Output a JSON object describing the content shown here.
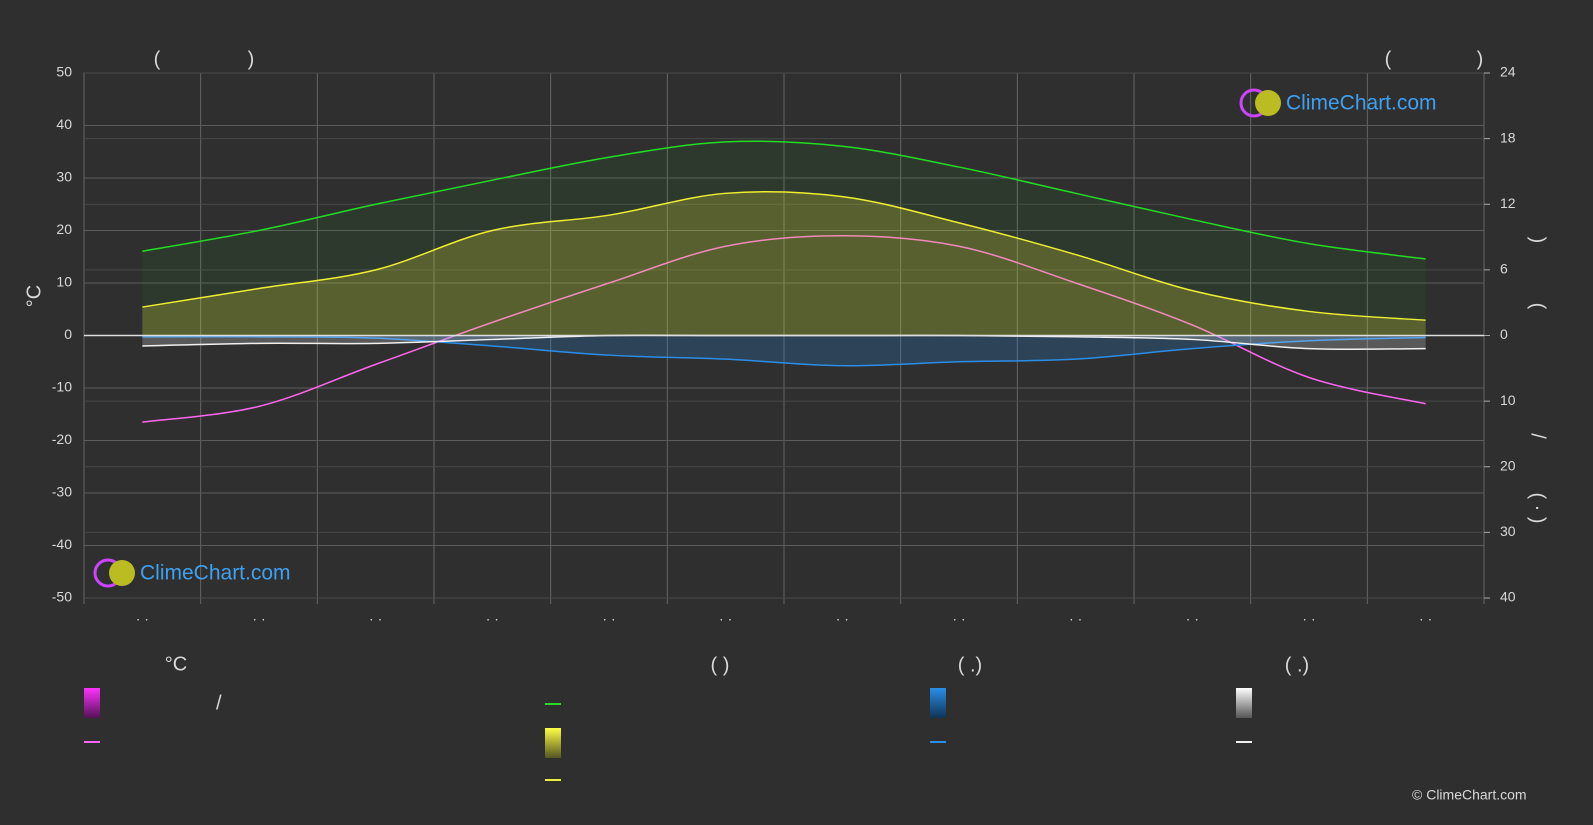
{
  "chart_data": {
    "type": "line",
    "categories": [
      "· ·",
      "· ·",
      "· ·",
      "· ·",
      "· ·",
      "· ·",
      "· ·",
      "· ·",
      "· ·",
      "· ·",
      "· ·",
      "· ·"
    ],
    "ylim": [
      -50,
      50
    ],
    "yticks": [
      -50,
      -40,
      -30,
      -20,
      -10,
      0,
      10,
      20,
      30,
      40,
      50
    ],
    "y_label": "°C",
    "sun_axis": {
      "lim": [
        0,
        24
      ],
      "ticks": [
        0,
        6,
        12,
        18,
        24
      ]
    },
    "precip_axis": {
      "lim": [
        0,
        40
      ],
      "ticks": [
        10,
        20,
        30,
        40
      ]
    },
    "right_label_parts": [
      ")",
      "(",
      "/",
      "( · )"
    ],
    "top_labels": [
      "(",
      ")",
      "(",
      ")"
    ],
    "grid": true,
    "series": [
      {
        "color": "#ff66ee",
        "axis": "y",
        "values": [
          -16.5,
          -13.5,
          -5.5,
          2.5,
          10,
          17,
          19,
          17,
          10,
          2,
          -8,
          -13
        ]
      },
      {
        "color": "#22dd22",
        "axis": "sun",
        "values": [
          7.7,
          9.6,
          12,
          14.2,
          16.3,
          17.7,
          17.3,
          15.4,
          13,
          10.6,
          8.4,
          7
        ]
      },
      {
        "color": "#eeee33",
        "axis": "sun",
        "values": [
          2.6,
          4.3,
          6,
          9.6,
          11,
          13,
          12.7,
          10.3,
          7.4,
          4.1,
          2.2,
          1.4
        ]
      },
      {
        "color": "#2a8ee8",
        "axis": "precip",
        "values": [
          0.2,
          0.2,
          0.4,
          1.6,
          3,
          3.6,
          4.6,
          4,
          3.6,
          2,
          0.8,
          0.3
        ]
      },
      {
        "color": "#f0f0f0",
        "axis": "precip",
        "values": [
          1.6,
          1.2,
          1.2,
          0.6,
          0,
          0,
          0,
          0,
          0.2,
          0.6,
          2,
          2
        ]
      }
    ],
    "legend": {
      "headers": [
        "°C",
        "(          )",
        "(   .)",
        "(   .)"
      ],
      "slash": "/"
    },
    "logo": "ClimeChart.com",
    "copyright": "© ClimeChart.com"
  }
}
